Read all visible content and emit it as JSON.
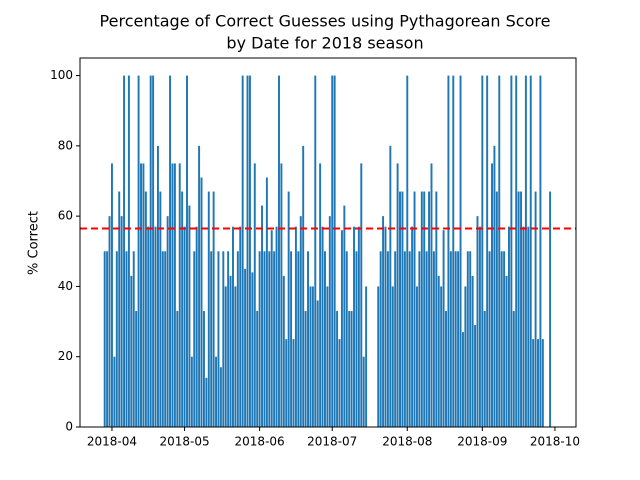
{
  "chart_data": {
    "type": "bar",
    "title": [
      "Percentage of Correct Guesses using Pythagorean Score",
      "by Date for 2018 season"
    ],
    "y_label": "% Correct",
    "color": "#1f77b4",
    "bar_width": 0.8,
    "x": [
      -3,
      -2,
      -1,
      0,
      1,
      2,
      3,
      4,
      5,
      6,
      7,
      8,
      9,
      10,
      11,
      12,
      13,
      14,
      15,
      16,
      17,
      18,
      19,
      20,
      21,
      22,
      23,
      24,
      25,
      26,
      27,
      28,
      29,
      30,
      31,
      32,
      33,
      34,
      35,
      36,
      37,
      38,
      39,
      40,
      41,
      42,
      43,
      44,
      45,
      46,
      47,
      48,
      49,
      50,
      51,
      52,
      53,
      54,
      55,
      56,
      57,
      58,
      59,
      60,
      61,
      62,
      63,
      64,
      65,
      66,
      67,
      68,
      69,
      70,
      71,
      72,
      73,
      74,
      75,
      76,
      77,
      78,
      79,
      80,
      81,
      82,
      83,
      84,
      85,
      86,
      87,
      88,
      89,
      90,
      91,
      92,
      93,
      94,
      95,
      96,
      97,
      98,
      99,
      100,
      101,
      102,
      103,
      104,
      105,
      106,
      107,
      108,
      109,
      110,
      111,
      112,
      113,
      114,
      115,
      116,
      117,
      118,
      119,
      120,
      121,
      122,
      123,
      124,
      125,
      126,
      127,
      128,
      129,
      130,
      131,
      132,
      133,
      134,
      135,
      136,
      137,
      138,
      139,
      140,
      141,
      142,
      143,
      144,
      145,
      146,
      147,
      148,
      149,
      150,
      151,
      152,
      153,
      154,
      155,
      156,
      157,
      158,
      159,
      160,
      161,
      162,
      163,
      164,
      165,
      166,
      167,
      168,
      169,
      170,
      171,
      172,
      173,
      174,
      175,
      176,
      177,
      178,
      179,
      180,
      181
    ],
    "values": [
      50,
      50,
      60,
      75,
      20,
      50,
      67,
      60,
      100,
      50,
      100,
      43,
      50,
      33,
      100,
      75,
      75,
      67,
      57,
      100,
      100,
      57,
      80,
      67,
      50,
      50,
      60,
      100,
      75,
      75,
      33,
      75,
      67,
      57,
      100,
      63,
      20,
      50,
      57,
      80,
      71,
      33,
      14,
      67,
      50,
      67,
      20,
      50,
      17,
      50,
      40,
      50,
      43,
      57,
      40,
      50,
      57,
      100,
      45,
      100,
      100,
      44,
      75,
      33,
      50,
      63,
      50,
      71,
      50,
      56,
      50,
      57,
      100,
      75,
      43,
      25,
      67,
      50,
      25,
      57,
      50,
      60,
      80,
      33,
      50,
      40,
      40,
      100,
      36,
      75,
      57,
      50,
      40,
      60,
      100,
      100,
      33,
      25,
      56,
      63,
      50,
      33,
      33,
      57,
      50,
      57,
      75,
      20,
      40,
      null,
      null,
      null,
      null,
      40,
      50,
      60,
      57,
      50,
      80,
      40,
      50,
      75,
      67,
      67,
      50,
      100,
      50,
      57,
      67,
      40,
      50,
      67,
      67,
      50,
      67,
      75,
      50,
      67,
      43,
      40,
      56,
      33,
      100,
      50,
      100,
      50,
      50,
      100,
      27,
      40,
      50,
      50,
      43,
      29,
      60,
      57,
      100,
      33,
      100,
      50,
      75,
      80,
      67,
      100,
      50,
      50,
      43,
      57,
      100,
      33,
      100,
      67,
      67,
      57,
      100,
      57,
      100,
      25,
      67,
      25,
      100,
      25,
      null,
      null,
      67
    ],
    "xlim": [
      -13.2,
      191.7
    ],
    "xticks": [
      {
        "value": 0,
        "label": "2018-04"
      },
      {
        "value": 30,
        "label": "2018-05"
      },
      {
        "value": 61,
        "label": "2018-06"
      },
      {
        "value": 91,
        "label": "2018-07"
      },
      {
        "value": 122,
        "label": "2018-08"
      },
      {
        "value": 153,
        "label": "2018-09"
      },
      {
        "value": 183,
        "label": "2018-10"
      }
    ],
    "ylim": [
      0,
      105
    ],
    "yticks": [
      0,
      20,
      40,
      60,
      80,
      100
    ],
    "hline": {
      "value": 56.5,
      "color": "red"
    }
  }
}
